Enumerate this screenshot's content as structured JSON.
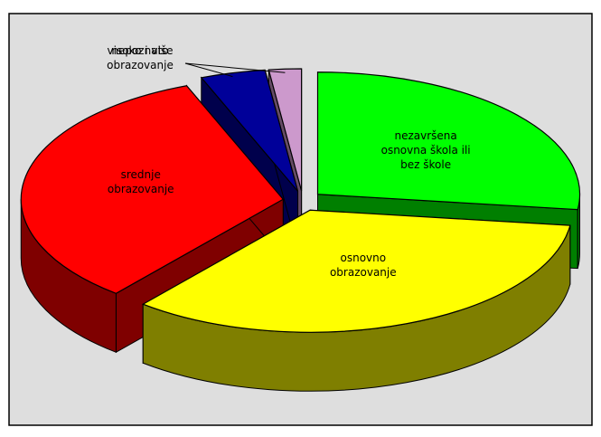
{
  "chart_data": {
    "type": "pie",
    "categories": [
      "nezavršena osnovna škola ili bez škole",
      "osnovno obrazovanje",
      "srednje obrazovanje",
      "visoko i više obrazovanje",
      "nepoznato"
    ],
    "values": [
      27,
      34,
      33,
      4,
      2
    ],
    "colors": [
      "#00ff00",
      "#ffff00",
      "#ff0000",
      "#000099",
      "#cc99cc"
    ]
  }
}
